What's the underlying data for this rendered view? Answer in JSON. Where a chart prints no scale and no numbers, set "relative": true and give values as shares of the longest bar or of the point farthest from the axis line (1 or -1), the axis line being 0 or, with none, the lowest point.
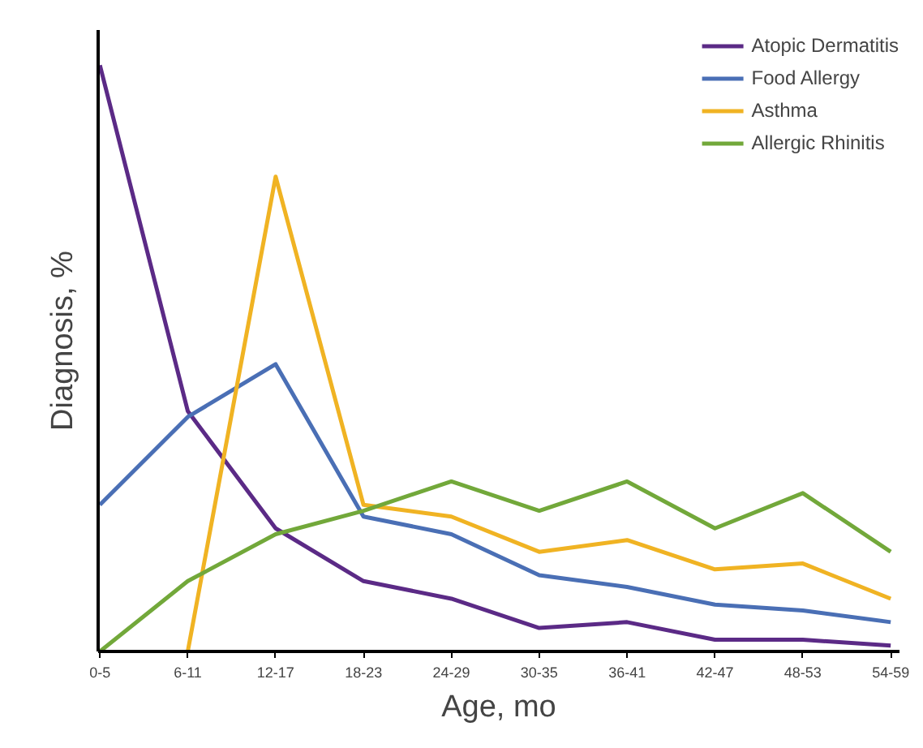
{
  "chart_data": {
    "type": "line",
    "relative": true,
    "xlabel": "Age, mo",
    "ylabel": "Diagnosis, %",
    "categories": [
      "0-5",
      "6-11",
      "12-17",
      "18-23",
      "24-29",
      "30-35",
      "36-41",
      "42-47",
      "48-53",
      "54-59"
    ],
    "legend": "top right",
    "grid": false,
    "series": [
      {
        "name": "Atopic Dermatitis",
        "color": "#5b2a86",
        "values": [
          1,
          0.41,
          0.21,
          0.12,
          0.09,
          0.04,
          0.05,
          0.02,
          0.02,
          0.01
        ]
      },
      {
        "name": "Food Allergy",
        "color": "#4a6fb5",
        "values": [
          0.25,
          0.4,
          0.49,
          0.23,
          0.2,
          0.13,
          0.11,
          0.08,
          0.07,
          0.05
        ]
      },
      {
        "name": "Asthma",
        "color": "#f0b323",
        "values": [
          null,
          0,
          0.81,
          0.25,
          0.23,
          0.17,
          0.19,
          0.14,
          0.15,
          0.09
        ]
      },
      {
        "name": "Allergic Rhinitis",
        "color": "#72a83a",
        "values": [
          0,
          0.12,
          0.2,
          0.24,
          0.29,
          0.24,
          0.29,
          0.21,
          0.27,
          0.17
        ]
      }
    ]
  }
}
